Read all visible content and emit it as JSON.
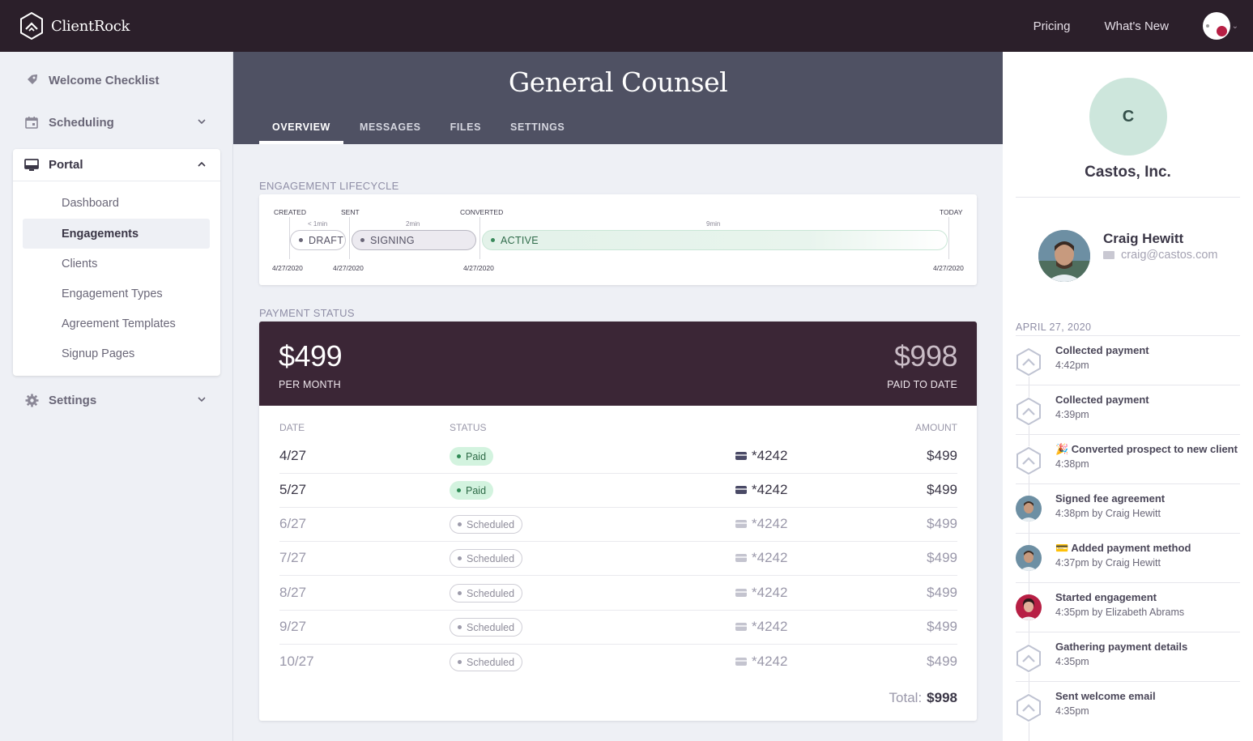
{
  "app": {
    "name": "ClientRock"
  },
  "topnav": {
    "pricing": "Pricing",
    "whats_new": "What's New"
  },
  "sidebar": {
    "welcome": "Welcome Checklist",
    "scheduling": "Scheduling",
    "portal": "Portal",
    "portal_items": [
      "Dashboard",
      "Engagements",
      "Clients",
      "Engagement Types",
      "Agreement Templates",
      "Signup Pages"
    ],
    "active_item": "Engagements",
    "settings": "Settings"
  },
  "page": {
    "title": "General Counsel",
    "tabs": [
      "OVERVIEW",
      "MESSAGES",
      "FILES",
      "SETTINGS"
    ],
    "active_tab": "OVERVIEW"
  },
  "lifecycle": {
    "label": "ENGAGEMENT LIFECYCLE",
    "milestones": [
      "CREATED",
      "SENT",
      "CONVERTED",
      "TODAY"
    ],
    "dates": [
      "4/27/2020",
      "4/27/2020",
      "4/27/2020",
      "4/27/2020"
    ],
    "durations": [
      "< 1min",
      "2min",
      "9min"
    ],
    "stages": [
      "DRAFT",
      "SIGNING",
      "ACTIVE"
    ]
  },
  "payment": {
    "label": "PAYMENT STATUS",
    "per_month_value": "$499",
    "per_month_caption": "PER MONTH",
    "paid_value": "$998",
    "paid_caption": "PAID TO DATE",
    "headers": {
      "date": "DATE",
      "status": "STATUS",
      "amount": "AMOUNT"
    },
    "rows": [
      {
        "date": "4/27",
        "status": "Paid",
        "card": "*4242",
        "amount": "$499"
      },
      {
        "date": "5/27",
        "status": "Paid",
        "card": "*4242",
        "amount": "$499"
      },
      {
        "date": "6/27",
        "status": "Scheduled",
        "card": "*4242",
        "amount": "$499"
      },
      {
        "date": "7/27",
        "status": "Scheduled",
        "card": "*4242",
        "amount": "$499"
      },
      {
        "date": "8/27",
        "status": "Scheduled",
        "card": "*4242",
        "amount": "$499"
      },
      {
        "date": "9/27",
        "status": "Scheduled",
        "card": "*4242",
        "amount": "$499"
      },
      {
        "date": "10/27",
        "status": "Scheduled",
        "card": "*4242",
        "amount": "$499"
      }
    ],
    "total_label": "Total:",
    "total_value": "$998"
  },
  "client": {
    "initial": "C",
    "name": "Castos, Inc.",
    "contact_name": "Craig Hewitt",
    "contact_email": "craig@castos.com"
  },
  "activity": {
    "date": "APRIL 27, 2020",
    "events": [
      {
        "icon": "logo",
        "title": "Collected payment",
        "sub": "4:42pm"
      },
      {
        "icon": "logo",
        "title": "Collected payment",
        "sub": "4:39pm"
      },
      {
        "icon": "logo",
        "title": "🎉 Converted prospect to new client",
        "sub": "4:38pm"
      },
      {
        "icon": "craig",
        "title": "Signed fee agreement",
        "sub": "4:38pm by Craig Hewitt"
      },
      {
        "icon": "craig",
        "title": "💳 Added payment method",
        "sub": "4:37pm by Craig Hewitt"
      },
      {
        "icon": "elizabeth",
        "title": "Started engagement",
        "sub": "4:35pm by Elizabeth Abrams"
      },
      {
        "icon": "logo",
        "title": "Gathering payment details",
        "sub": "4:35pm"
      },
      {
        "icon": "logo",
        "title": "Sent welcome email",
        "sub": "4:35pm"
      }
    ]
  }
}
